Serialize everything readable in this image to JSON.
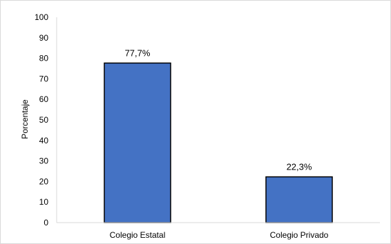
{
  "chart_data": {
    "type": "bar",
    "categories": [
      "Colegio Estatal",
      "Colegio Privado"
    ],
    "values": [
      77.7,
      22.3
    ],
    "data_labels": [
      "77,7%",
      "22,3%"
    ],
    "title": "",
    "xlabel": "",
    "ylabel": "Porcentaje",
    "ylim": [
      0,
      100
    ],
    "yticks": [
      0,
      10,
      20,
      30,
      40,
      50,
      60,
      70,
      80,
      90,
      100
    ],
    "grid": false,
    "legend": "none",
    "bar_color": "#4472c4",
    "bar_edge_color": "#000000"
  }
}
